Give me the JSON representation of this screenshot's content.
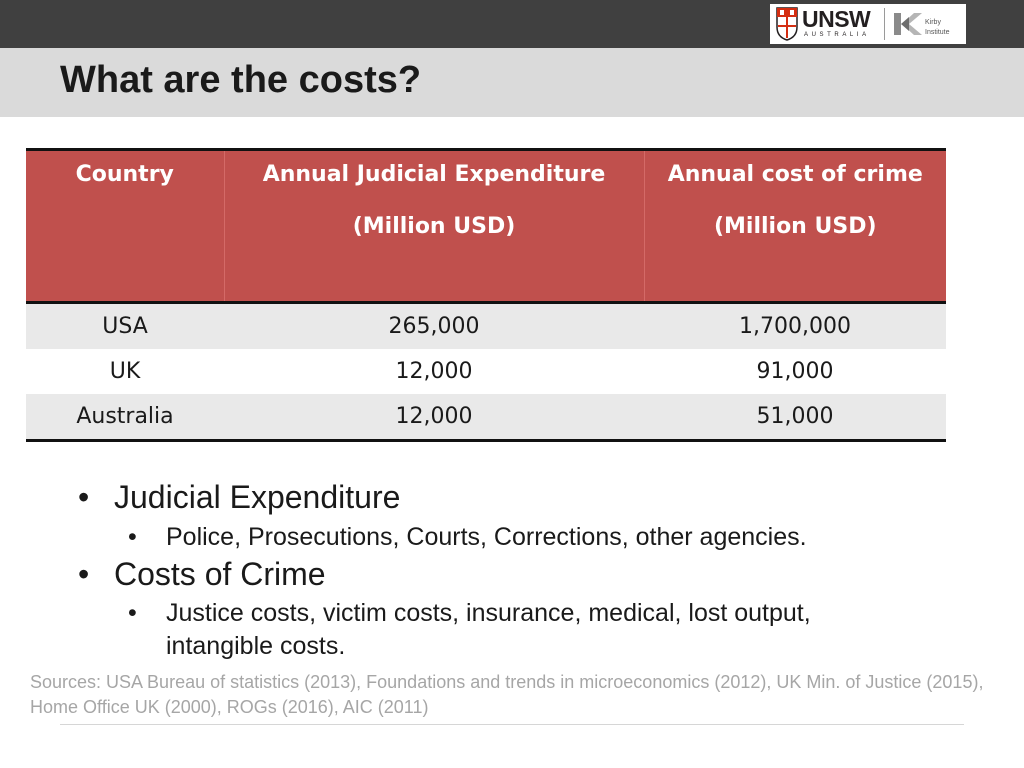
{
  "header": {
    "logo_text": "UNSW",
    "logo_sub": "AUSTRALIA",
    "partner_logo_text": "Kirby Institute"
  },
  "slide": {
    "title": "What are the costs?"
  },
  "table": {
    "headers": [
      {
        "line1": "Country",
        "line2": ""
      },
      {
        "line1": "Annual Judicial Expenditure",
        "line2": "(Million  USD)"
      },
      {
        "line1": "Annual cost of crime",
        "line2": "(Million USD)"
      }
    ],
    "rows": [
      [
        "USA",
        "265,000",
        "1,700,000"
      ],
      [
        "UK",
        "12,000",
        "91,000"
      ],
      [
        "Australia",
        "12,000",
        "51,000"
      ]
    ]
  },
  "bullets": [
    {
      "text": "Judicial Expenditure",
      "sub": [
        "Police, Prosecutions, Courts, Corrections, other agencies."
      ]
    },
    {
      "text": "Costs of Crime",
      "sub": [
        "Justice costs, victim costs, insurance, medical, lost output,",
        "intangible costs."
      ]
    }
  ],
  "bullet_glyph": "•",
  "sources": "Sources: USA Bureau of statistics (2013), Foundations and trends in microeconomics (2012), UK Min. of Justice (2015), Home Office UK (2000), ROGs (2016), AIC (2011)",
  "colors": {
    "header_bg": "#c0504d",
    "top_bar": "#404040",
    "title_band": "#dadada",
    "row_alt": "#e9e9e9",
    "sources_text": "#a6a6a6"
  }
}
